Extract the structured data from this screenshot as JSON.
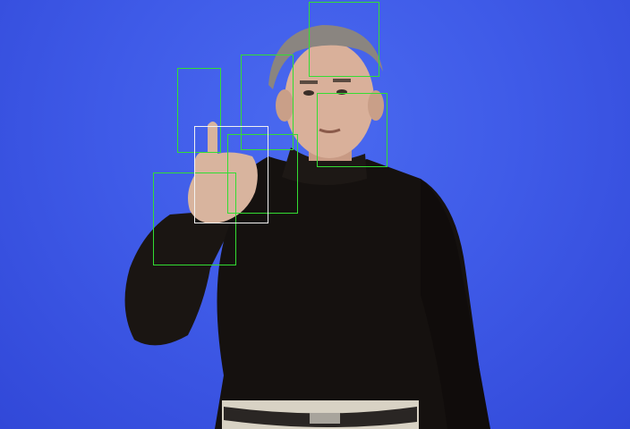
{
  "scene": {
    "colors": {
      "background": "#3f5be8",
      "sweater": "#15110f",
      "skin": "#d9b09a",
      "hair": "#8a8580",
      "belt": "#2a2624",
      "pants": "#d8d2c4",
      "detection_box": "#33dd33",
      "highlight_box": "#f2f2f2"
    }
  }
}
